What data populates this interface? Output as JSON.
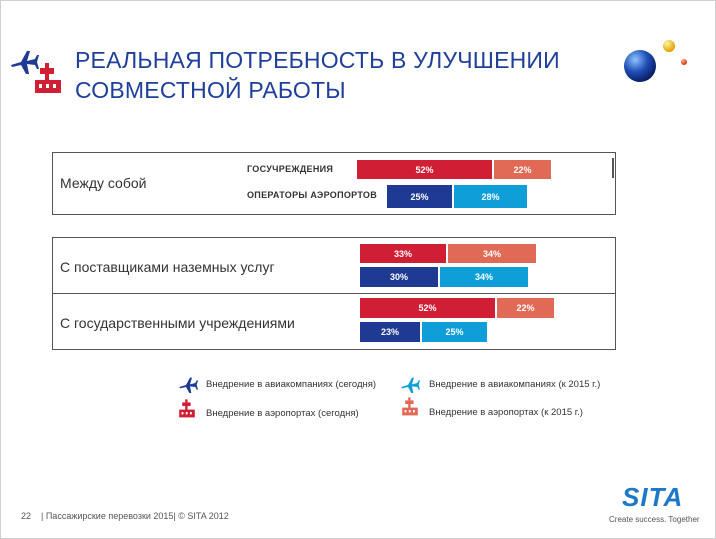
{
  "title": {
    "line1": "РЕАЛЬНАЯ ПОТРЕБНОСТЬ В УЛУЧШЕНИИ",
    "line2": "СОВМЕСТНОЙ РАБОТЫ"
  },
  "colors": {
    "airlines_today": "#1f3a93",
    "airlines_2015": "#0f9fd8",
    "airports_today": "#d01f35",
    "airports_2015": "#e06a55",
    "title": "#1f3f99"
  },
  "chart_data": {
    "type": "bar",
    "orientation": "horizontal",
    "value_format": "percent",
    "groups": [
      {
        "label": "Между собой",
        "bars": [
          {
            "sub_label": "ГОСУЧРЕЖДЕНИЯ",
            "segments": [
              {
                "series": "airports_today",
                "value": 52,
                "label": "52%"
              },
              {
                "series": "airports_2015",
                "value": 22,
                "label": "22%"
              }
            ]
          },
          {
            "sub_label": "ОПЕРАТОРЫ АЭРОПОРТОВ",
            "segments": [
              {
                "series": "airlines_today",
                "value": 25,
                "label": "25%"
              },
              {
                "series": "airlines_2015",
                "value": 28,
                "label": "28%"
              }
            ]
          }
        ]
      },
      {
        "label": "С поставщиками наземных услуг",
        "bars": [
          {
            "sub_label": "",
            "segments": [
              {
                "series": "airports_today",
                "value": 33,
                "label": "33%"
              },
              {
                "series": "airports_2015",
                "value": 34,
                "label": "34%"
              }
            ]
          },
          {
            "sub_label": "",
            "segments": [
              {
                "series": "airlines_today",
                "value": 30,
                "label": "30%"
              },
              {
                "series": "airlines_2015",
                "value": 34,
                "label": "34%"
              }
            ]
          }
        ]
      },
      {
        "label": "С государственными учреждениями",
        "bars": [
          {
            "sub_label": "",
            "segments": [
              {
                "series": "airports_today",
                "value": 52,
                "label": "52%"
              },
              {
                "series": "airports_2015",
                "value": 22,
                "label": "22%"
              }
            ]
          },
          {
            "sub_label": "",
            "segments": [
              {
                "series": "airlines_today",
                "value": 23,
                "label": "23%"
              },
              {
                "series": "airlines_2015",
                "value": 25,
                "label": "25%"
              }
            ]
          }
        ]
      }
    ],
    "legend": [
      {
        "series": "airlines_today",
        "label": "Внедрение в авиакомпаниях (сегодня)",
        "icon": "airplane-icon"
      },
      {
        "series": "airlines_2015",
        "label": "Внедрение в авиакомпаниях (к 2015 г.)",
        "icon": "airplane-icon"
      },
      {
        "series": "airports_today",
        "label": "Внедрение в аэропортах (сегодня)",
        "icon": "airport-tower-icon"
      },
      {
        "series": "airports_2015",
        "label": "Внедрение в аэропортах (к 2015 г.)",
        "icon": "airport-tower-icon"
      }
    ]
  },
  "footer": {
    "page_number": "22",
    "text": "| Пассажирские перевозки 2015| © SITA 2012"
  },
  "logo": {
    "name": "SITA",
    "tagline": "Create success. Together"
  }
}
